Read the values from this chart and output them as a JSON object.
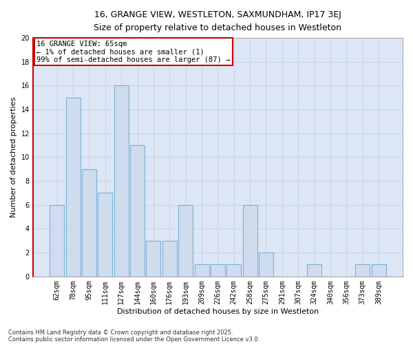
{
  "title_line1": "16, GRANGE VIEW, WESTLETON, SAXMUNDHAM, IP17 3EJ",
  "title_line2": "Size of property relative to detached houses in Westleton",
  "xlabel": "Distribution of detached houses by size in Westleton",
  "ylabel": "Number of detached properties",
  "categories": [
    "62sqm",
    "78sqm",
    "95sqm",
    "111sqm",
    "127sqm",
    "144sqm",
    "160sqm",
    "176sqm",
    "193sqm",
    "209sqm",
    "226sqm",
    "242sqm",
    "258sqm",
    "275sqm",
    "291sqm",
    "307sqm",
    "324sqm",
    "340sqm",
    "356sqm",
    "373sqm",
    "389sqm"
  ],
  "values": [
    6,
    15,
    9,
    7,
    16,
    11,
    3,
    3,
    6,
    1,
    1,
    1,
    6,
    2,
    0,
    0,
    1,
    0,
    0,
    1,
    1
  ],
  "bar_color": "#cfdcee",
  "bar_edge_color": "#7bafd4",
  "annotation_line1": "16 GRANGE VIEW: 65sqm",
  "annotation_line2": "← 1% of detached houses are smaller (1)",
  "annotation_line3": "99% of semi-detached houses are larger (87) →",
  "annotation_box_edge_color": "#cc0000",
  "ylim": [
    0,
    20
  ],
  "yticks": [
    0,
    2,
    4,
    6,
    8,
    10,
    12,
    14,
    16,
    18,
    20
  ],
  "grid_color": "#c8d4e8",
  "background_color": "#dce6f5",
  "left_spine_color": "#cc0000",
  "footer_line1": "Contains HM Land Registry data © Crown copyright and database right 2025.",
  "footer_line2": "Contains public sector information licensed under the Open Government Licence v3.0.",
  "title_fontsize": 9,
  "axis_label_fontsize": 8,
  "tick_fontsize": 7,
  "annotation_fontsize": 7.5,
  "footer_fontsize": 6
}
